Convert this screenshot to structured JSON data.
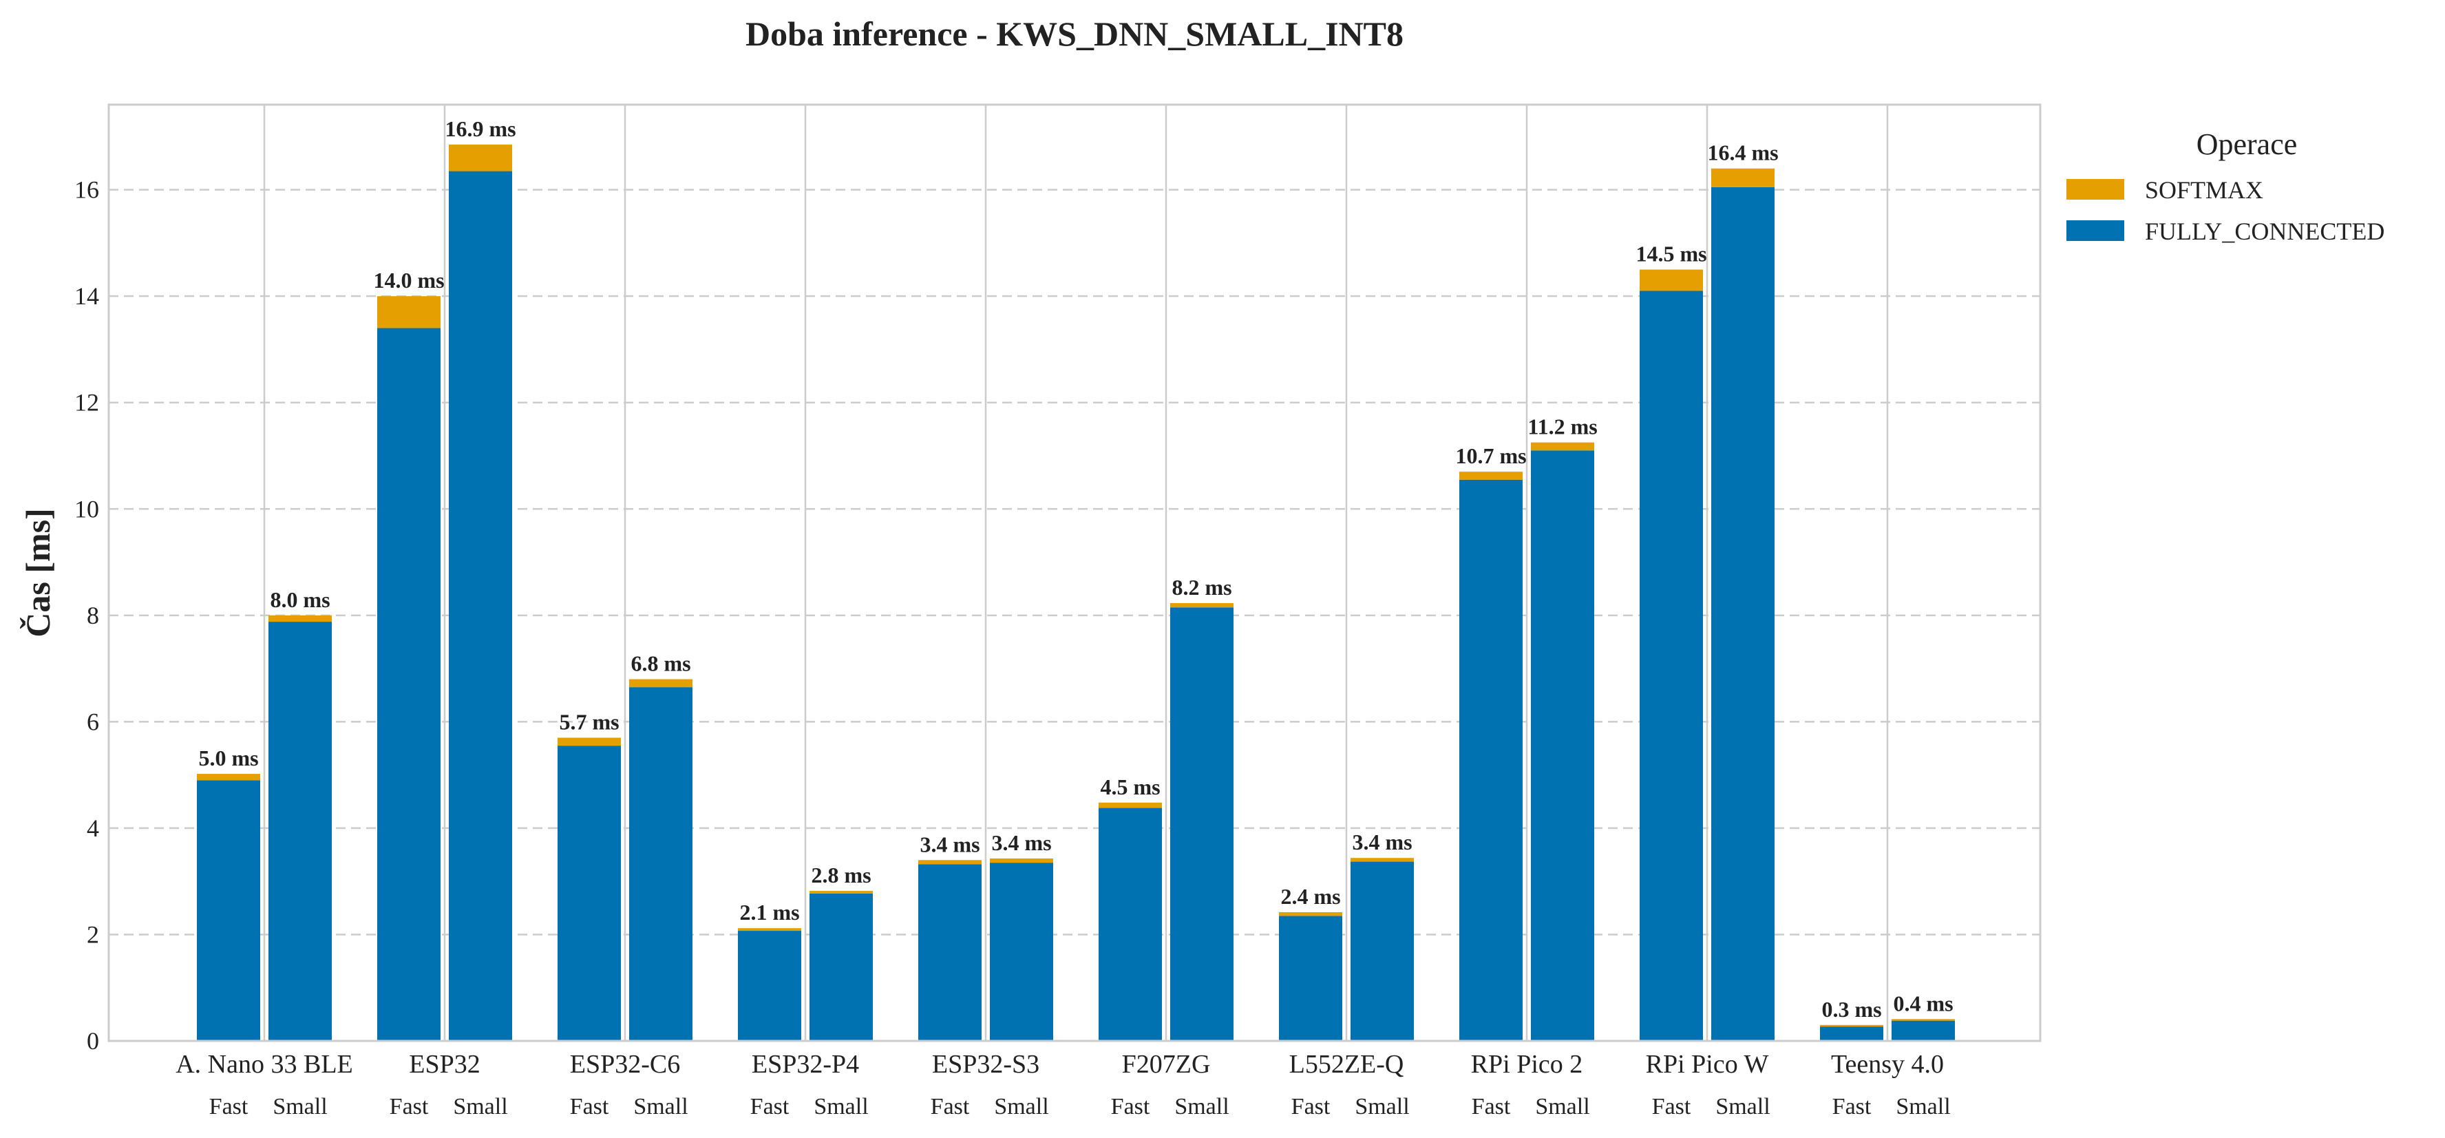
{
  "chart_data": {
    "type": "bar",
    "stacked": true,
    "title": "Doba inference - KWS_DNN_SMALL_INT8",
    "xlabel": "",
    "ylabel": "Čas [ms]",
    "ylim": [
      0,
      17.6
    ],
    "yticks": [
      0,
      2,
      4,
      6,
      8,
      10,
      12,
      14,
      16
    ],
    "grid": "y-dashed",
    "legend": {
      "title": "Operace",
      "placement": "outside-top-right"
    },
    "categories": [
      "A. Nano 33 BLE",
      "ESP32",
      "ESP32-C6",
      "ESP32-P4",
      "ESP32-S3",
      "F207ZG",
      "L552ZE-Q",
      "RPi Pico 2",
      "RPi Pico W",
      "Teensy 4.0"
    ],
    "subcategories": [
      "Fast",
      "Small"
    ],
    "series": [
      {
        "name": "FULLY_CONNECTED",
        "color": "#0072B2",
        "values": [
          [
            4.9,
            7.88
          ],
          [
            13.4,
            16.35
          ],
          [
            5.55,
            6.65
          ],
          [
            2.07,
            2.77
          ],
          [
            3.32,
            3.35
          ],
          [
            4.38,
            8.15
          ],
          [
            2.35,
            3.37
          ],
          [
            10.55,
            11.1
          ],
          [
            14.1,
            16.05
          ],
          [
            0.27,
            0.38
          ]
        ]
      },
      {
        "name": "SOFTMAX",
        "color": "#E69F00",
        "values": [
          [
            0.12,
            0.12
          ],
          [
            0.6,
            0.5
          ],
          [
            0.15,
            0.15
          ],
          [
            0.05,
            0.05
          ],
          [
            0.08,
            0.08
          ],
          [
            0.1,
            0.08
          ],
          [
            0.07,
            0.07
          ],
          [
            0.15,
            0.15
          ],
          [
            0.4,
            0.35
          ],
          [
            0.03,
            0.03
          ]
        ]
      }
    ],
    "totals_labels": [
      [
        "5.0 ms",
        "8.0 ms"
      ],
      [
        "14.0 ms",
        "16.9 ms"
      ],
      [
        "5.7 ms",
        "6.8 ms"
      ],
      [
        "2.1 ms",
        "2.8 ms"
      ],
      [
        "3.4 ms",
        "3.4 ms"
      ],
      [
        "4.5 ms",
        "8.2 ms"
      ],
      [
        "2.4 ms",
        "3.4 ms"
      ],
      [
        "10.7 ms",
        "11.2 ms"
      ],
      [
        "14.5 ms",
        "16.4 ms"
      ],
      [
        "0.3 ms",
        "0.4 ms"
      ]
    ]
  }
}
